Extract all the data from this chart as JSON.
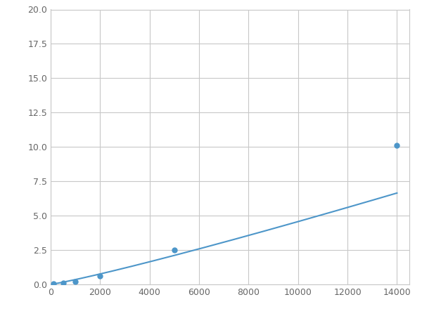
{
  "x": [
    100,
    500,
    1000,
    2000,
    5000,
    14000
  ],
  "y": [
    0.05,
    0.12,
    0.18,
    0.6,
    2.5,
    10.1
  ],
  "line_color": "#4d96c9",
  "marker_color": "#4d96c9",
  "marker_size": 5,
  "xlim": [
    0,
    14500
  ],
  "ylim": [
    0,
    20
  ],
  "xticks": [
    0,
    2000,
    4000,
    6000,
    8000,
    10000,
    12000,
    14000
  ],
  "yticks": [
    0.0,
    2.5,
    5.0,
    7.5,
    10.0,
    12.5,
    15.0,
    17.5,
    20.0
  ],
  "grid_color": "#c8c8c8",
  "background_color": "#ffffff",
  "figsize": [
    6.0,
    4.5
  ],
  "dpi": 100
}
